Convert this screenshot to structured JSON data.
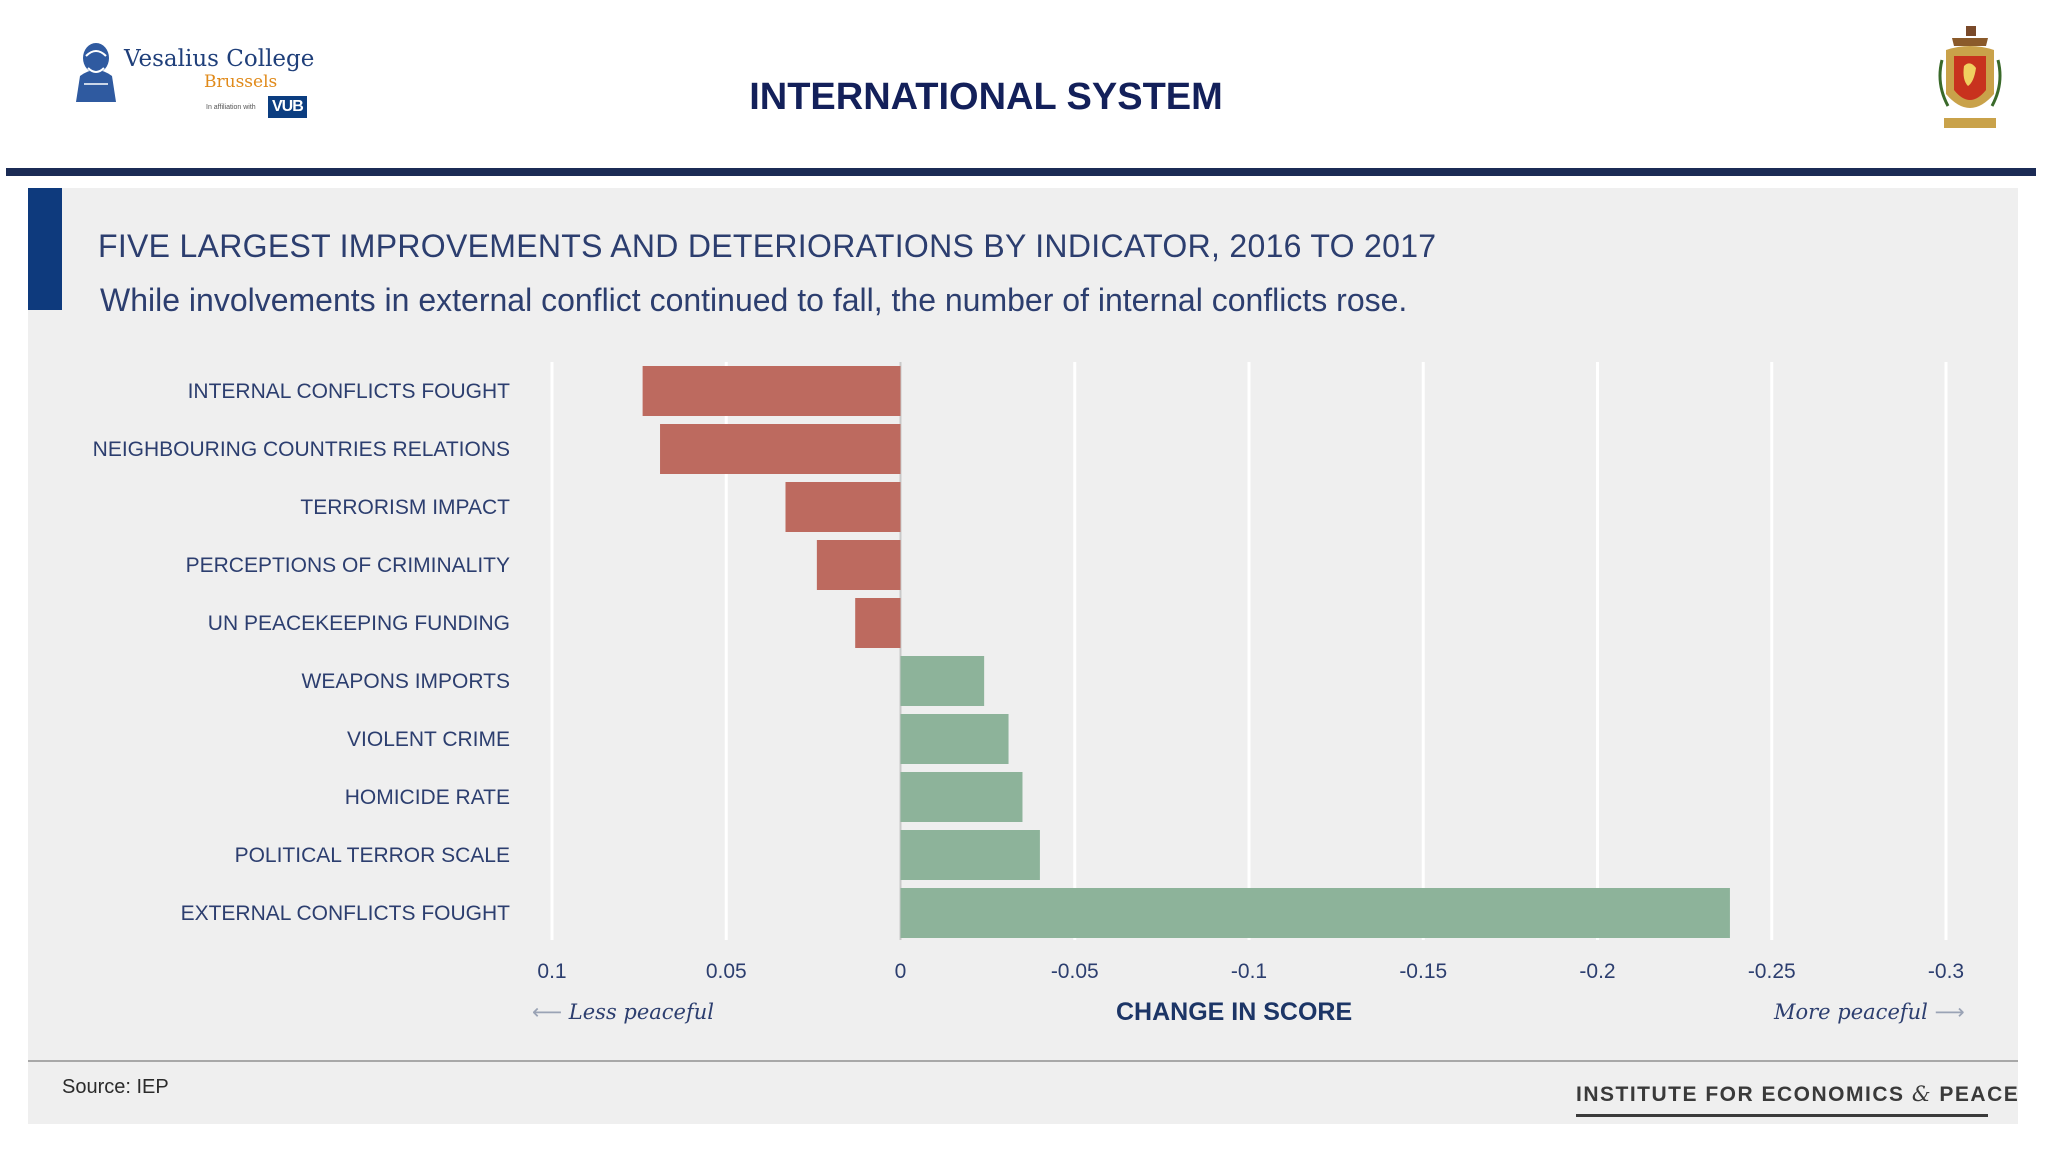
{
  "header": {
    "title": "INTERNATIONAL SYSTEM",
    "college_name": "Vesalius College",
    "college_city": "Brussels",
    "affiliation_text": "In affiliation with",
    "affiliation_logo": "VUB"
  },
  "colors": {
    "deterioration": "#bd6a5f",
    "improvement": "#8db39a",
    "title_text": "#2c3e6f",
    "header_rule": "#1b2b55",
    "accent_bar": "#0e3a7d"
  },
  "chart_data": {
    "type": "bar",
    "orientation": "horizontal",
    "title": "FIVE LARGEST IMPROVEMENTS AND DETERIORATIONS BY INDICATOR, 2016 TO 2017",
    "subtitle": "While involvements in external conflict continued to fall, the number of internal conflicts rose.",
    "categories": [
      "INTERNAL CONFLICTS FOUGHT",
      "NEIGHBOURING COUNTRIES RELATIONS",
      "TERRORISM IMPACT",
      "PERCEPTIONS OF CRIMINALITY",
      "UN PEACEKEEPING FUNDING",
      "WEAPONS IMPORTS",
      "VIOLENT CRIME",
      "HOMICIDE RATE",
      "POLITICAL TERROR SCALE",
      "EXTERNAL CONFLICTS FOUGHT"
    ],
    "values": [
      0.074,
      0.069,
      0.033,
      0.024,
      0.013,
      -0.024,
      -0.031,
      -0.035,
      -0.04,
      -0.238
    ],
    "xlim": [
      0.1,
      -0.3
    ],
    "xticks": [
      0.1,
      0.05,
      0,
      -0.05,
      -0.1,
      -0.15,
      -0.2,
      -0.25,
      -0.3
    ],
    "xtick_labels": [
      "0.1",
      "0.05",
      "0",
      "-0.05",
      "-0.1",
      "-0.15",
      "-0.2",
      "-0.25",
      "-0.3"
    ],
    "xlabel": "CHANGE IN SCORE",
    "left_direction_label": "Less peaceful",
    "right_direction_label": "More peaceful",
    "grid": true
  },
  "footer": {
    "source": "Source: IEP",
    "institute_part1": "INSTITUTE FOR ECONOMICS",
    "institute_amp": "&",
    "institute_part2": "PEACE"
  }
}
